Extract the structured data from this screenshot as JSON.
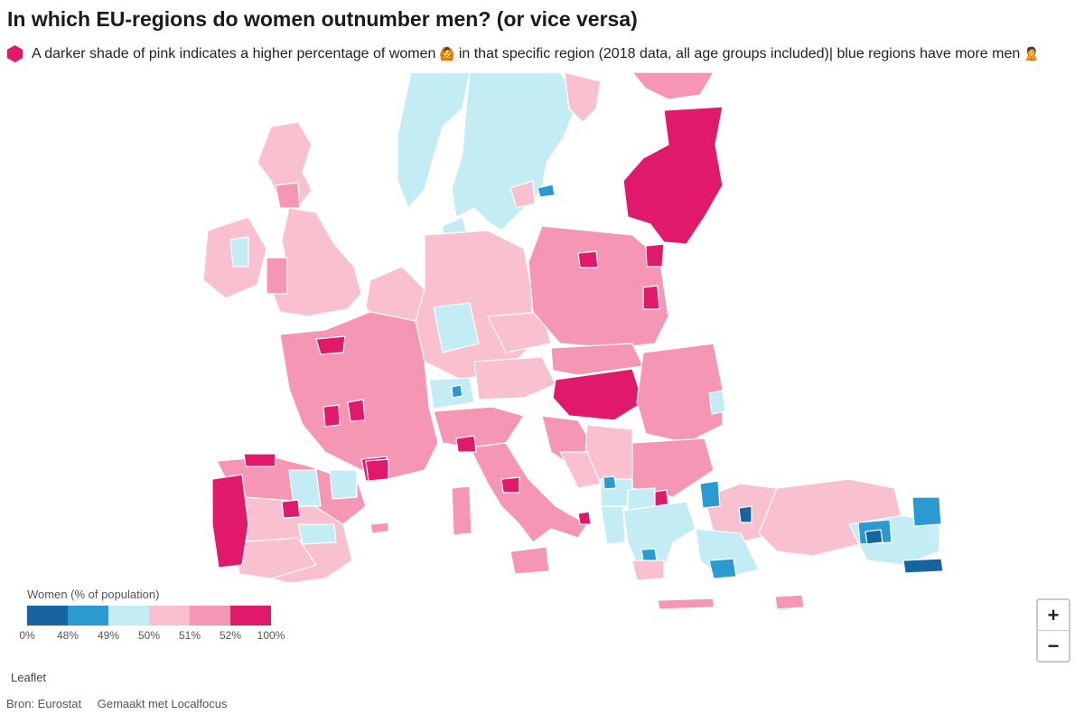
{
  "title": "In which EU-regions do women outnumber men? (or vice versa)",
  "subtitle": {
    "part1": "A darker shade of pink indicates a higher percentage of women",
    "emoji1": "🙆",
    "part2": "in that specific region (2018 data, all age groups included)| blue regions have more men",
    "emoji2": "🙎",
    "marker_color": "#e0196b"
  },
  "legend": {
    "title": "Women (% of population)",
    "colors": [
      "#1764a0",
      "#2b9ad1",
      "#c4ecf5",
      "#f9c0cf",
      "#f596b4",
      "#e0196b"
    ],
    "ticks": [
      "0%",
      "48%",
      "49%",
      "50%",
      "51%",
      "52%",
      "100%"
    ]
  },
  "zoom": {
    "in_label": "+",
    "out_label": "−"
  },
  "attribution": "Leaflet",
  "footer": {
    "source": "Bron: Eurostat",
    "made_with": "Gemaakt met Localfocus"
  }
}
